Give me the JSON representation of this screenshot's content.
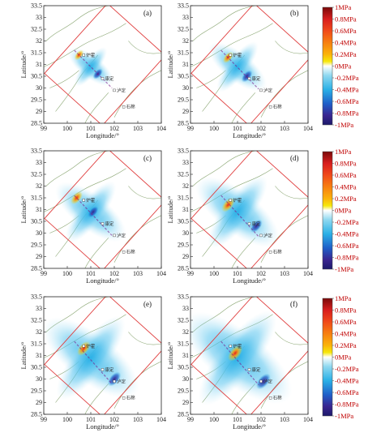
{
  "chart_data": [
    {
      "type": "heatmap",
      "panel_label": "(a)",
      "xlabel": "Longitude/°",
      "ylabel": "Latitude/°",
      "xlim": [
        99,
        104
      ],
      "ylim": [
        28.5,
        33.5
      ],
      "xticks": [
        "99",
        "100",
        "101",
        "102",
        "103",
        "104"
      ],
      "yticks": [
        "28.5",
        "29",
        "29.5",
        "30",
        "30.5",
        "31",
        "31.5",
        "32",
        "32.5",
        "33",
        "33.5"
      ],
      "towns": [
        {
          "name": "炉霍",
          "lon": 100.7,
          "lat": 31.4
        },
        {
          "name": "康定",
          "lon": 101.5,
          "lat": 30.4
        },
        {
          "name": "泸定",
          "lon": 102.0,
          "lat": 29.9
        },
        {
          "name": "石棉",
          "lon": 102.4,
          "lat": 29.2
        }
      ],
      "stress_patches": [
        {
          "lon": 100.5,
          "lat": 31.4,
          "value": 0.6
        },
        {
          "lon": 101.3,
          "lat": 30.6,
          "value": -0.7
        }
      ]
    },
    {
      "type": "heatmap",
      "panel_label": "(b)",
      "xlabel": "Longitude/°",
      "ylabel": "Latitude/°",
      "xlim": [
        99,
        104
      ],
      "ylim": [
        28.5,
        33.5
      ],
      "xticks": [
        "99",
        "100",
        "101",
        "102",
        "103",
        "104"
      ],
      "yticks": [
        "28.5",
        "29",
        "29.5",
        "30",
        "30.5",
        "31",
        "31.5",
        "32",
        "32.5",
        "33",
        "33.5"
      ],
      "towns": [
        {
          "name": "炉霍",
          "lon": 100.7,
          "lat": 31.4
        },
        {
          "name": "康定",
          "lon": 101.5,
          "lat": 30.4
        },
        {
          "name": "泸定",
          "lon": 102.0,
          "lat": 29.9
        },
        {
          "name": "石棉",
          "lon": 102.4,
          "lat": 29.2
        }
      ],
      "stress_patches": [
        {
          "lon": 100.6,
          "lat": 31.3,
          "value": 0.7
        },
        {
          "lon": 101.4,
          "lat": 30.5,
          "value": -0.8
        }
      ]
    },
    {
      "type": "heatmap",
      "panel_label": "(c)",
      "xlabel": "Longitude/°",
      "ylabel": "Latitude/°",
      "xlim": [
        99,
        104
      ],
      "ylim": [
        28.5,
        33.5
      ],
      "xticks": [
        "99",
        "100",
        "101",
        "102",
        "103",
        "104"
      ],
      "yticks": [
        "28.5",
        "29",
        "29.5",
        "30",
        "30.5",
        "31",
        "31.5",
        "32",
        "32.5",
        "33",
        "33.5"
      ],
      "towns": [
        {
          "name": "炉霍",
          "lon": 100.7,
          "lat": 31.4
        },
        {
          "name": "康定",
          "lon": 101.5,
          "lat": 30.4
        },
        {
          "name": "泸定",
          "lon": 102.0,
          "lat": 29.9
        },
        {
          "name": "石棉",
          "lon": 102.4,
          "lat": 29.2
        }
      ],
      "stress_patches": [
        {
          "lon": 100.4,
          "lat": 31.5,
          "value": 0.8
        },
        {
          "lon": 101.1,
          "lat": 30.9,
          "value": -0.6
        }
      ]
    },
    {
      "type": "heatmap",
      "panel_label": "(d)",
      "xlabel": "Longitude/°",
      "ylabel": "Latitude/°",
      "xlim": [
        99,
        104
      ],
      "ylim": [
        28.5,
        33.5
      ],
      "xticks": [
        "99",
        "100",
        "101",
        "102",
        "103",
        "104"
      ],
      "yticks": [
        "28.5",
        "29",
        "29.5",
        "30",
        "30.5",
        "31",
        "31.5",
        "32",
        "32.5",
        "33",
        "33.5"
      ],
      "towns": [
        {
          "name": "炉霍",
          "lon": 100.7,
          "lat": 31.4
        },
        {
          "name": "康定",
          "lon": 101.5,
          "lat": 30.4
        },
        {
          "name": "泸定",
          "lon": 102.0,
          "lat": 29.9
        },
        {
          "name": "石棉",
          "lon": 102.4,
          "lat": 29.2
        }
      ],
      "stress_patches": [
        {
          "lon": 100.6,
          "lat": 31.2,
          "value": 0.9
        },
        {
          "lon": 101.8,
          "lat": 30.3,
          "value": -0.7
        }
      ]
    },
    {
      "type": "heatmap",
      "panel_label": "(e)",
      "xlabel": "Longitude/°",
      "ylabel": "Latitude/°",
      "xlim": [
        99,
        104
      ],
      "ylim": [
        28.5,
        33.5
      ],
      "xticks": [
        "99",
        "100",
        "101",
        "102",
        "103",
        "104"
      ],
      "yticks": [
        "28.5",
        "29",
        "29.5",
        "30",
        "30.5",
        "31",
        "31.5",
        "32",
        "32.5",
        "33",
        "33.5"
      ],
      "towns": [
        {
          "name": "炉霍",
          "lon": 100.7,
          "lat": 31.4
        },
        {
          "name": "康定",
          "lon": 101.5,
          "lat": 30.4
        },
        {
          "name": "泸定",
          "lon": 102.0,
          "lat": 29.9
        },
        {
          "name": "石棉",
          "lon": 102.4,
          "lat": 29.2
        }
      ],
      "stress_patches": [
        {
          "lon": 100.7,
          "lat": 31.3,
          "value": 0.8
        },
        {
          "lon": 102.0,
          "lat": 30.0,
          "value": -0.8
        }
      ]
    },
    {
      "type": "heatmap",
      "panel_label": "(f)",
      "xlabel": "Longitude/°",
      "ylabel": "Latitude/°",
      "xlim": [
        99,
        104
      ],
      "ylim": [
        28.5,
        33.5
      ],
      "xticks": [
        "99",
        "100",
        "101",
        "102",
        "103",
        "104"
      ],
      "yticks": [
        "28.5",
        "29",
        "29.5",
        "30",
        "30.5",
        "31",
        "31.5",
        "32",
        "32.5",
        "33",
        "33.5"
      ],
      "towns": [
        {
          "name": "炉霍",
          "lon": 100.7,
          "lat": 31.4
        },
        {
          "name": "康定",
          "lon": 101.5,
          "lat": 30.4
        },
        {
          "name": "泸定",
          "lon": 102.0,
          "lat": 29.9
        },
        {
          "name": "石棉",
          "lon": 102.4,
          "lat": 29.2
        }
      ],
      "stress_patches": [
        {
          "lon": 100.9,
          "lat": 31.1,
          "value": 0.9
        },
        {
          "lon": 102.1,
          "lat": 29.9,
          "value": -0.9
        }
      ]
    }
  ],
  "colorbar": {
    "labels": [
      "1MPa",
      "0.8MPa",
      "0.6MPa",
      "0.4MPa",
      "0.2MPa",
      "0MPa",
      "-0.2MPa",
      "-0.4MPa",
      "-0.6MPa",
      "-0.8MPa",
      "-1MPa"
    ],
    "colors": [
      "#7a0a0a",
      "#d81e1e",
      "#f04a1a",
      "#f77f10",
      "#fbb30a",
      "#f6e80a",
      "#ffffff",
      "#8fd8f0",
      "#2ab0e6",
      "#1f5fc8",
      "#3a2590",
      "#1c1a6a"
    ],
    "label_color": "#c00000"
  },
  "colors": {
    "frame": "#e04040",
    "fault": "#6b8f4e",
    "stress_pos": "#f0a020",
    "stress_neg": "#1f9ae0",
    "axis": "#222222"
  }
}
